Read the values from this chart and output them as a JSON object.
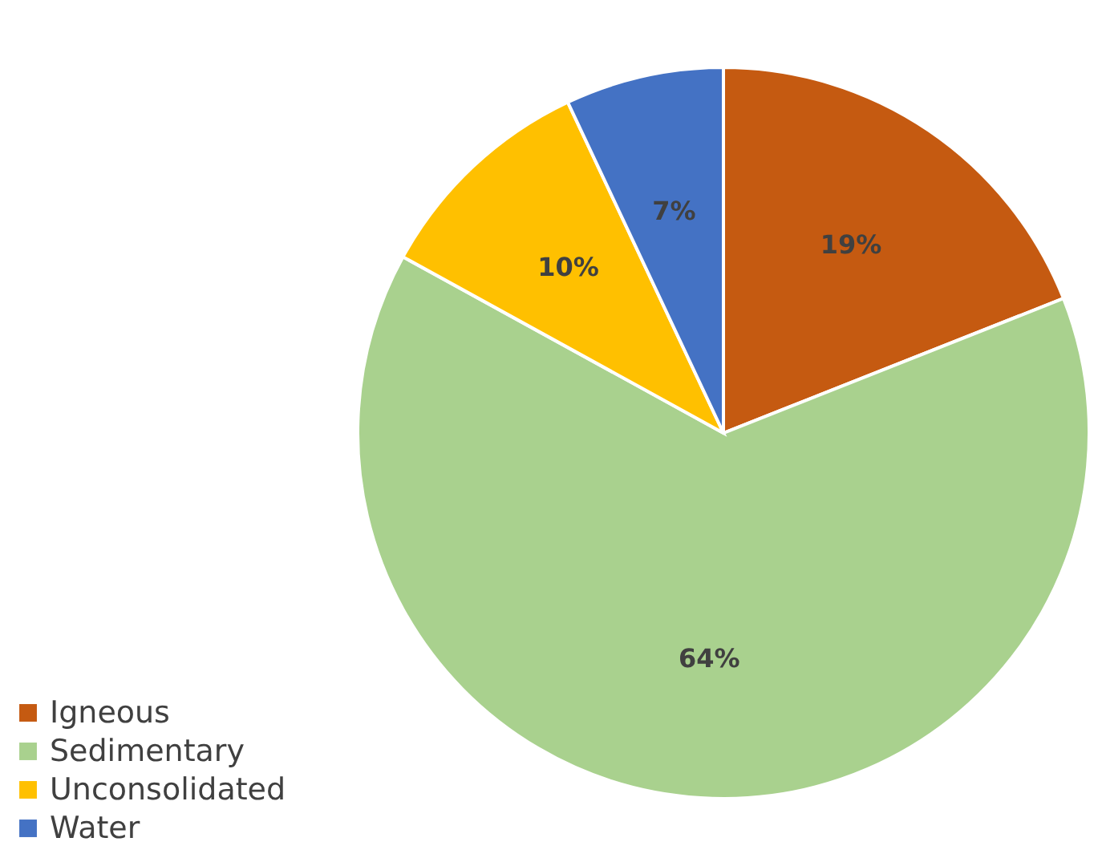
{
  "chart_data": {
    "type": "pie",
    "categories": [
      "Igneous",
      "Sedimentary",
      "Unconsolidated",
      "Water"
    ],
    "values": [
      19,
      64,
      10,
      7
    ],
    "colors": [
      "#c55a11",
      "#a9d18e",
      "#ffc000",
      "#4472c4"
    ],
    "value_labels": [
      "19%",
      "64%",
      "10%",
      "7%"
    ],
    "legend": "bottom left"
  }
}
